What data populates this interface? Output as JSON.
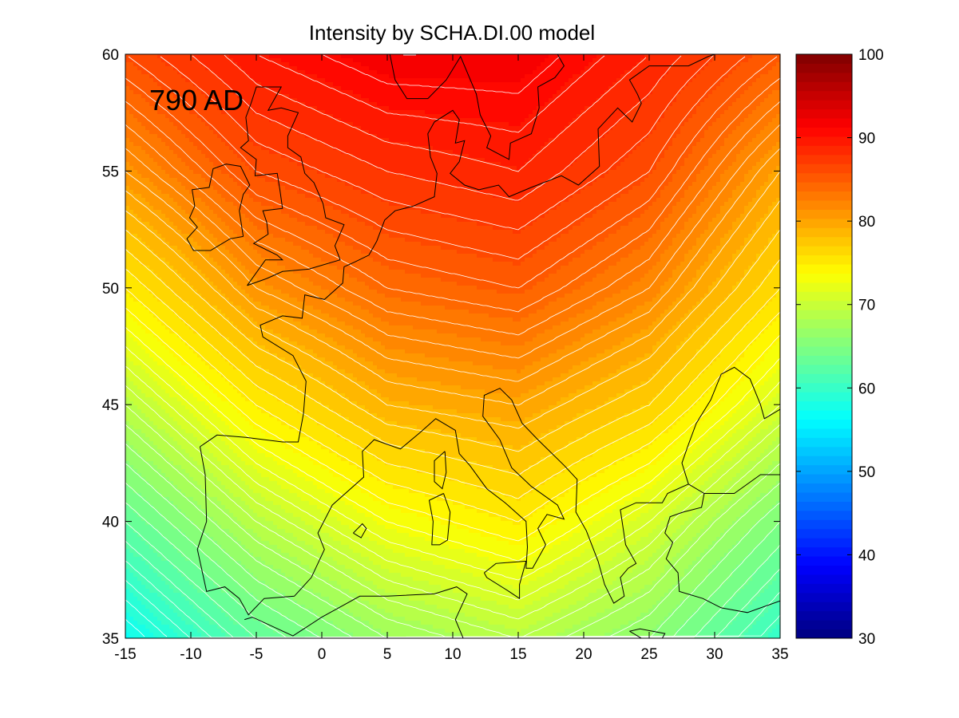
{
  "title": "Intensity by SCHA.DI.00 model",
  "map": {
    "epoch_label": "790 AD",
    "x_ticks": [
      "-15",
      "-10",
      "-5",
      "0",
      "5",
      "10",
      "15",
      "20",
      "25",
      "30",
      "35"
    ],
    "y_ticks": [
      "35",
      "40",
      "45",
      "50",
      "55",
      "60"
    ],
    "xlim": [
      -15,
      35
    ],
    "ylim": [
      35,
      60
    ],
    "projection": "equirectangular",
    "contour_lines_color": "#ffffff",
    "coastline_color": "#000000"
  },
  "colorbar": {
    "ticks": [
      "30",
      "40",
      "50",
      "60",
      "70",
      "80",
      "90",
      "100"
    ],
    "range": [
      30,
      100
    ],
    "colormap": "jet",
    "levels": 64
  },
  "chart_data": {
    "type": "heatmap",
    "title": "Intensity by SCHA.DI.00 model",
    "xlabel": "",
    "ylabel": "",
    "xlim": [
      -15,
      35
    ],
    "ylim": [
      35,
      60
    ],
    "clim": [
      30,
      100
    ],
    "contour_step": 1,
    "sample_grid": {
      "lon": [
        -15,
        -5,
        5,
        15,
        25,
        35
      ],
      "lat": [
        60,
        55,
        50,
        45,
        40,
        35
      ],
      "values": [
        [
          86,
          90,
          92,
          92,
          89,
          85
        ],
        [
          81,
          86,
          88,
          89,
          86,
          80
        ],
        [
          75,
          81,
          84,
          85,
          82,
          76
        ],
        [
          69,
          75,
          79,
          80,
          77,
          71
        ],
        [
          63,
          69,
          73,
          75,
          71,
          65
        ],
        [
          57,
          63,
          67,
          69,
          66,
          60
        ]
      ]
    }
  }
}
